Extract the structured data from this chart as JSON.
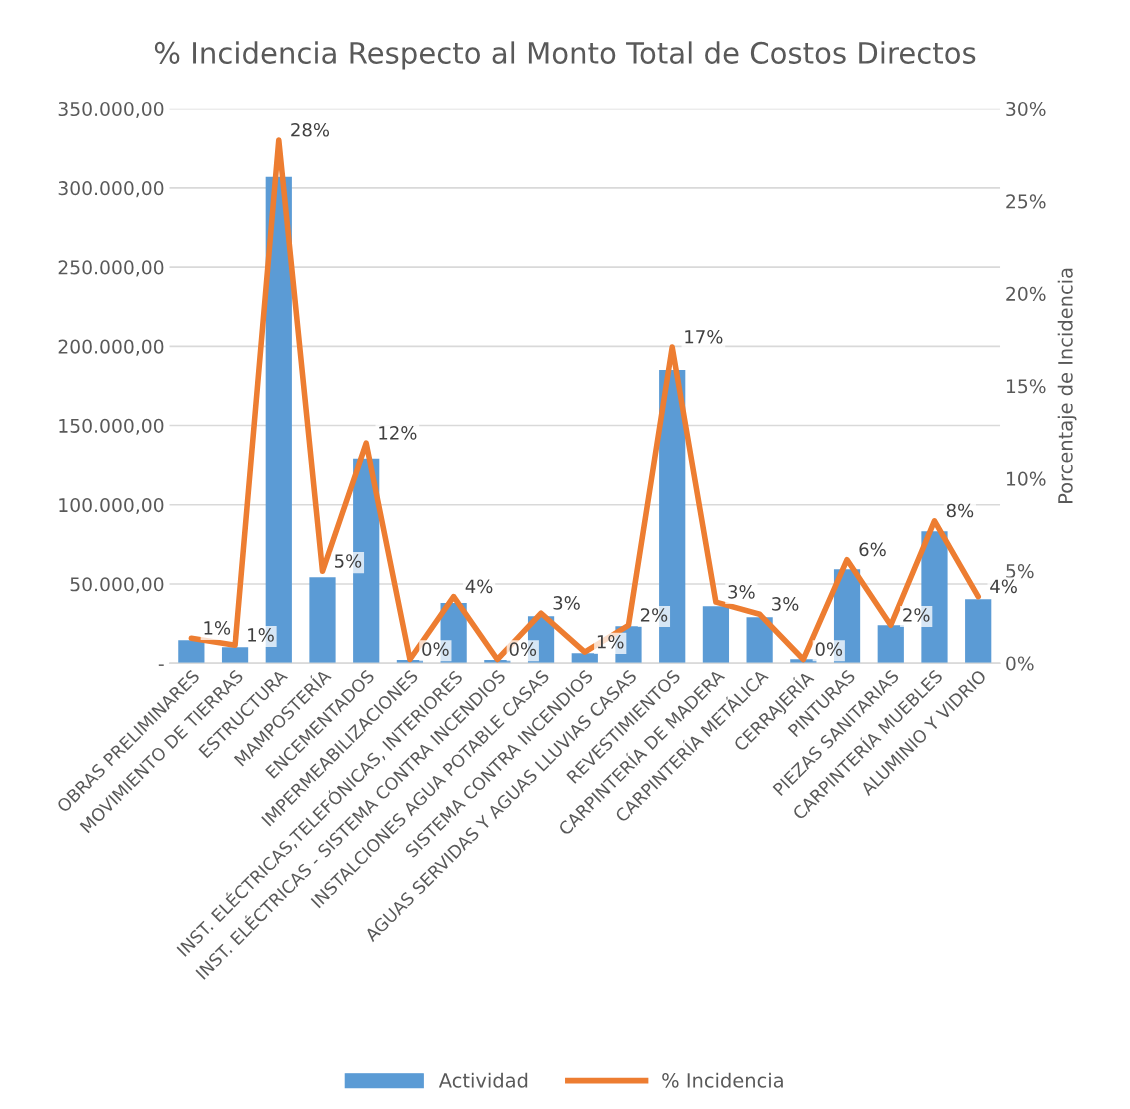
{
  "chart_data": {
    "type": "bar",
    "title": "% Incidencia Respecto al Monto Total de Costos Directos",
    "y2label": "Porcentaje de Incidencia",
    "categories": [
      "OBRAS PRELIMINARES",
      "MOVIMIENTO DE TIERRAS",
      "ESTRUCTURA",
      "MAMPOSTERÍA",
      "ENCEMENTADOS",
      "IMPERMEABILIZACIONES",
      "INST. ELÉCTRICAS,TELEFÓNICAS, INTERIORES",
      "INST. ELÉCTRICAS - SISTEMA CONTRA INCENDIOS",
      "INSTALCIONES AGUA POTABLE CASAS",
      "SISTEMA CONTRA INCENDIOS",
      "AGUAS SERVIDAS Y AGUAS LLUVIAS CASAS",
      "REVESTIMIENTOS",
      "CARPINTERÍA DE MADERA",
      "CARPINTERÍA METÁLICA",
      "CERRAJERÍA",
      "PINTURAS",
      "PIEZAS SANITARIAS",
      "CARPINTERÍA MUEBLES",
      "ALUMINIO Y VIDRIO"
    ],
    "series": [
      {
        "name": "Actividad",
        "color": "#5b9bd5",
        "values": [
          14500,
          10000,
          307000,
          54200,
          129000,
          2000,
          38000,
          2000,
          29600,
          6300,
          23300,
          185000,
          36000,
          29000,
          2500,
          59300,
          24000,
          83200,
          40400
        ]
      },
      {
        "name": "% Incidencia",
        "type": "line",
        "axis": "y2",
        "color": "#ed7d31",
        "values": [
          1.35,
          0.97,
          28.3,
          4.97,
          11.9,
          0.2,
          3.6,
          0.2,
          2.7,
          0.6,
          2.05,
          17.1,
          3.3,
          2.65,
          0.2,
          5.6,
          2.05,
          7.7,
          3.6
        ],
        "value_labels": [
          "1%",
          "1%",
          "28%",
          "5%",
          "12%",
          "0%",
          "4%",
          "0%",
          "3%",
          "1%",
          "2%",
          "17%",
          "3%",
          "3%",
          "0%",
          "6%",
          "2%",
          "8%",
          "4%"
        ]
      }
    ],
    "ylim": [
      0,
      350000
    ],
    "yticks": [
      {
        "value": 0,
        "label": "-"
      },
      {
        "value": 50000,
        "label": "50.000,00"
      },
      {
        "value": 100000,
        "label": "100.000,00"
      },
      {
        "value": 150000,
        "label": "150.000,00"
      },
      {
        "value": 200000,
        "label": "200.000,00"
      },
      {
        "value": 250000,
        "label": "250.000,00"
      },
      {
        "value": 300000,
        "label": "300.000,00"
      },
      {
        "value": 350000,
        "label": "350.000,00"
      }
    ],
    "y2lim": [
      0,
      30
    ],
    "y2ticks": [
      {
        "value": 0,
        "label": "0%"
      },
      {
        "value": 5,
        "label": "5%"
      },
      {
        "value": 10,
        "label": "10%"
      },
      {
        "value": 15,
        "label": "15%"
      },
      {
        "value": 20,
        "label": "20%"
      },
      {
        "value": 25,
        "label": "25%"
      },
      {
        "value": 30,
        "label": "30%"
      }
    ],
    "grid": "y",
    "legend": "bottom",
    "line_style": "solid",
    "marker": "none"
  }
}
